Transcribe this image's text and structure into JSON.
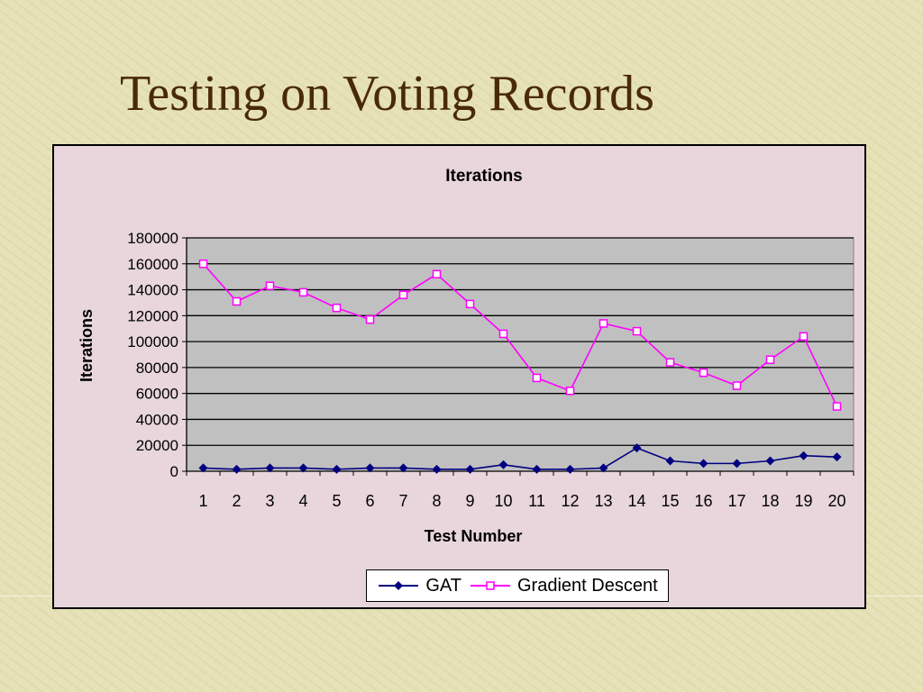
{
  "slide": {
    "title": "Testing on Voting Records"
  },
  "chart_data": {
    "type": "line",
    "title": "Iterations",
    "xlabel": "Test Number",
    "ylabel": "Iterations",
    "categories": [
      "1",
      "2",
      "3",
      "4",
      "5",
      "6",
      "7",
      "8",
      "9",
      "10",
      "11",
      "12",
      "13",
      "14",
      "15",
      "16",
      "17",
      "18",
      "19",
      "20"
    ],
    "ylim": [
      0,
      180000
    ],
    "yticks": [
      "0",
      "20000",
      "40000",
      "60000",
      "80000",
      "100000",
      "120000",
      "140000",
      "160000",
      "180000"
    ],
    "grid": true,
    "legend_position": "bottom",
    "series": [
      {
        "name": "GAT",
        "color": "#000080",
        "marker": "diamond",
        "values": [
          2500,
          1500,
          2500,
          2500,
          1500,
          2500,
          2500,
          1500,
          1500,
          5000,
          1500,
          1500,
          2500,
          18000,
          8000,
          6000,
          6000,
          8000,
          12000,
          11000
        ]
      },
      {
        "name": "Gradient Descent",
        "color": "#ff00ff",
        "marker": "square",
        "values": [
          160000,
          131000,
          143000,
          138000,
          126000,
          117000,
          136000,
          152000,
          129000,
          106000,
          72000,
          62000,
          114000,
          108000,
          84000,
          76000,
          66000,
          86000,
          104000,
          50000
        ]
      }
    ]
  }
}
